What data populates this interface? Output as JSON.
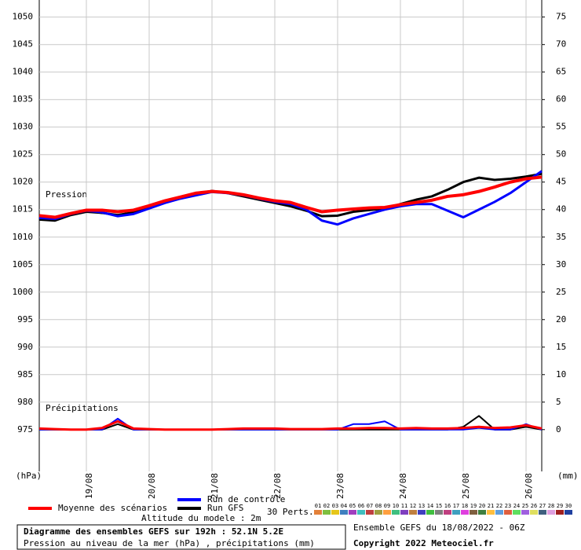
{
  "chart_data": {
    "type": "line",
    "title": "Diagramme des ensembles GEFS sur 192h : 52.1N 5.2E",
    "subtitle": "Pression au niveau de la mer (hPa) , précipitations (mm)",
    "run_info": "Ensemble GEFS du 18/08/2022 - 06Z",
    "copyright": "Copyright 2022 Meteociel.fr",
    "altitude": "Altitude du modele : 2m",
    "pressure_label": "Pression",
    "precip_label": "Précipitations",
    "y_unit": "(hPa)",
    "y2_unit": "(mm)",
    "perturbations_label": "30 Perts.",
    "x": [
      0,
      6,
      12,
      18,
      24,
      30,
      36,
      42,
      48,
      54,
      60,
      66,
      72,
      78,
      84,
      90,
      96,
      102,
      108,
      114,
      120,
      126,
      132,
      138,
      144,
      150,
      156,
      162,
      168,
      174,
      180,
      186,
      192
    ],
    "xlim": [
      0,
      192
    ],
    "xticks": [
      {
        "value": 18,
        "label": "19/08"
      },
      {
        "value": 42,
        "label": "20/08"
      },
      {
        "value": 66,
        "label": "21/08"
      },
      {
        "value": 90,
        "label": "22/08"
      },
      {
        "value": 114,
        "label": "23/08"
      },
      {
        "value": 138,
        "label": "24/08"
      },
      {
        "value": 162,
        "label": "25/08"
      },
      {
        "value": 186,
        "label": "26/08"
      }
    ],
    "ylim": [
      967.4,
      1053.1
    ],
    "yticks": [
      975,
      980,
      985,
      990,
      995,
      1000,
      1005,
      1010,
      1015,
      1020,
      1025,
      1030,
      1035,
      1040,
      1045,
      1050
    ],
    "y2lim": [
      -7.6,
      78.1
    ],
    "y2ticks": [
      0,
      5,
      10,
      15,
      20,
      25,
      30,
      35,
      40,
      45,
      50,
      55,
      60,
      65,
      70,
      75
    ],
    "grid": true,
    "series": [
      {
        "name": "Run GFS",
        "color": "#000000",
        "values": [
          1013.2,
          1013.0,
          1014.0,
          1014.6,
          1014.4,
          1014.0,
          1014.5,
          1015.5,
          1016.4,
          1017.2,
          1017.9,
          1018.4,
          1018.0,
          1017.4,
          1016.8,
          1016.2,
          1015.6,
          1014.8,
          1013.8,
          1013.9,
          1014.6,
          1014.9,
          1015.2,
          1016.0,
          1016.8,
          1017.4,
          1018.6,
          1020.0,
          1020.8,
          1020.4,
          1020.6,
          1021.0,
          1021.5
        ],
        "precip": [
          0,
          0,
          0,
          0,
          0,
          1.0,
          0,
          0,
          0,
          0,
          0,
          0,
          0,
          0,
          0,
          0,
          0,
          0,
          0,
          0,
          0,
          0,
          0,
          0,
          0,
          0,
          0,
          0.5,
          2.5,
          0,
          0,
          0.5,
          0
        ]
      },
      {
        "name": "Run de contrôle",
        "color": "#0000ff",
        "values": [
          1013.5,
          1013.3,
          1014.2,
          1014.8,
          1014.5,
          1013.8,
          1014.2,
          1015.2,
          1016.2,
          1017.0,
          1017.6,
          1018.2,
          1018.0,
          1017.6,
          1017.0,
          1016.4,
          1016.0,
          1015.0,
          1013.0,
          1012.3,
          1013.4,
          1014.2,
          1015.0,
          1015.6,
          1016.0,
          1016.0,
          1014.8,
          1013.6,
          1015.0,
          1016.4,
          1018.0,
          1020.0,
          1022.0
        ],
        "precip": [
          0,
          0,
          0,
          0,
          0,
          2.0,
          0,
          0,
          0,
          0,
          0,
          0,
          0,
          0,
          0,
          0,
          0,
          0,
          0,
          0,
          1.0,
          1.0,
          1.5,
          0,
          0,
          0,
          0,
          0,
          0.3,
          0,
          0,
          1.0,
          0
        ]
      },
      {
        "name": "Moyenne des scénarios",
        "color": "#ff0000",
        "values": [
          1013.9,
          1013.6,
          1014.3,
          1014.9,
          1014.9,
          1014.6,
          1014.9,
          1015.7,
          1016.6,
          1017.3,
          1018.0,
          1018.3,
          1018.1,
          1017.7,
          1017.1,
          1016.6,
          1016.3,
          1015.4,
          1014.6,
          1014.9,
          1015.1,
          1015.3,
          1015.4,
          1015.9,
          1016.3,
          1016.7,
          1017.4,
          1017.7,
          1018.3,
          1019.1,
          1020.0,
          1020.6,
          1020.9
        ],
        "precip": [
          0.2,
          0.1,
          0,
          0,
          0.3,
          1.5,
          0.2,
          0.1,
          0,
          0,
          0,
          0,
          0.1,
          0.2,
          0.2,
          0.2,
          0.1,
          0.1,
          0.1,
          0.2,
          0.2,
          0.3,
          0.3,
          0.2,
          0.3,
          0.2,
          0.2,
          0.3,
          0.5,
          0.3,
          0.4,
          0.8,
          0.2
        ]
      }
    ],
    "perturbations": [
      {
        "name": "01",
        "color": "#e3813a"
      },
      {
        "name": "02",
        "color": "#7fbf3f"
      },
      {
        "name": "03",
        "color": "#e6c619"
      },
      {
        "name": "04",
        "color": "#3f7fbf"
      },
      {
        "name": "05",
        "color": "#a03fbf"
      },
      {
        "name": "06",
        "color": "#3fbfbf"
      },
      {
        "name": "07",
        "color": "#bf3f3f"
      },
      {
        "name": "08",
        "color": "#9f9f3f"
      },
      {
        "name": "09",
        "color": "#ff9f3f"
      },
      {
        "name": "10",
        "color": "#3fbf7f"
      },
      {
        "name": "11",
        "color": "#7f3fbf"
      },
      {
        "name": "12",
        "color": "#bf7f3f"
      },
      {
        "name": "13",
        "color": "#3f3fbf"
      },
      {
        "name": "14",
        "color": "#3fbf3f"
      },
      {
        "name": "15",
        "color": "#7f7f7f"
      },
      {
        "name": "16",
        "color": "#bf3f7f"
      },
      {
        "name": "17",
        "color": "#3f9fbf"
      },
      {
        "name": "18",
        "color": "#df3fdf"
      },
      {
        "name": "19",
        "color": "#7f5f3f"
      },
      {
        "name": "20",
        "color": "#3f7f3f"
      },
      {
        "name": "21",
        "color": "#ffbf3f"
      },
      {
        "name": "22",
        "color": "#5f9fdf"
      },
      {
        "name": "23",
        "color": "#df5f3f"
      },
      {
        "name": "24",
        "color": "#5fdf5f"
      },
      {
        "name": "25",
        "color": "#9f5fdf"
      },
      {
        "name": "26",
        "color": "#dfdf5f"
      },
      {
        "name": "27",
        "color": "#3f5f7f"
      },
      {
        "name": "28",
        "color": "#df9fdf"
      },
      {
        "name": "29",
        "color": "#9f1f1f"
      },
      {
        "name": "30",
        "color": "#1f3f9f"
      }
    ]
  }
}
